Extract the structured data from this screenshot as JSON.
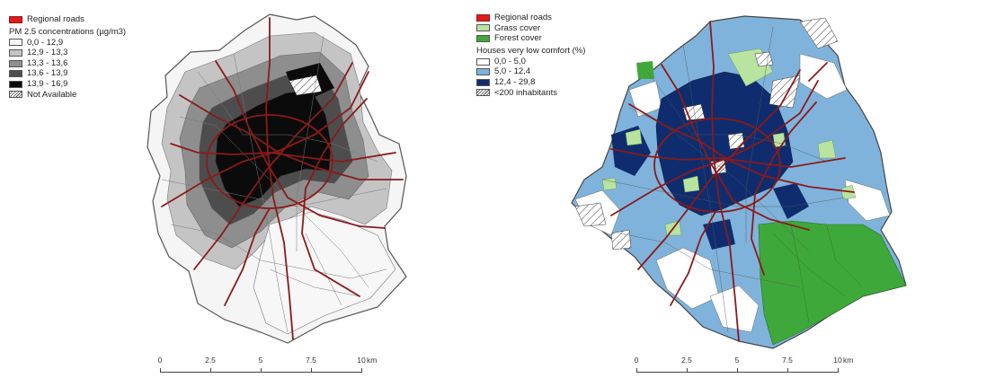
{
  "left_map": {
    "legend": {
      "roads_label": "Regional roads",
      "title": "PM 2.5 concentrations (µg/m3)",
      "classes": [
        {
          "label": "0,0 - 12,9",
          "color": "#f7f7f7"
        },
        {
          "label": "12,9 - 13,3",
          "color": "#c4c4c4"
        },
        {
          "label": "13,3 - 13,6",
          "color": "#8e8e8e"
        },
        {
          "label": "13,6 - 13,9",
          "color": "#4d4d4d"
        },
        {
          "label": "13,9 - 16,9",
          "color": "#0b0b0b"
        }
      ],
      "na_label": "Not Available"
    },
    "scale": {
      "ticks": [
        "0",
        "2.5",
        "5",
        "7.5",
        "10"
      ],
      "unit": "km"
    }
  },
  "right_map": {
    "legend": {
      "roads_label": "Regional roads",
      "grass_label": "Grass cover",
      "forest_label": "Forest cover",
      "title": "Houses very low comfort (%)",
      "classes": [
        {
          "label": "0,0 - 5,0",
          "color": "#ffffff"
        },
        {
          "label": "5,0 - 12,4",
          "color": "#7fb3dc"
        },
        {
          "label": "12,4 - 29,8",
          "color": "#0f2d6e"
        }
      ],
      "na_label": "<200 inhabitants"
    },
    "scale": {
      "ticks": [
        "0",
        "2.5",
        "5",
        "7.5",
        "10"
      ],
      "unit": "km"
    }
  },
  "colors": {
    "roads": "#e01b1b",
    "road_lines": "#8b1a1a",
    "grass": "#b9e3a0",
    "forest": "#3fa83a",
    "boundary": "#444444"
  }
}
